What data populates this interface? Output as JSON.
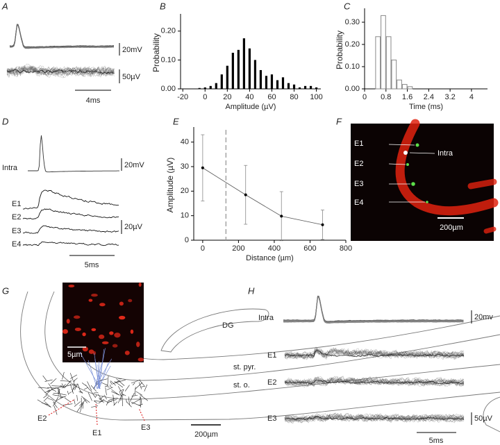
{
  "chart_data": [
    {
      "type": "bar",
      "panel": "B",
      "xlabel": "Amplitude (µV)",
      "ylabel": "Probability",
      "x": [
        -5,
        0,
        5,
        10,
        15,
        20,
        25,
        30,
        35,
        40,
        45,
        50,
        55,
        60,
        65,
        70,
        75,
        80,
        85,
        90,
        95,
        100
      ],
      "values": [
        0.003,
        0.005,
        0.01,
        0.02,
        0.05,
        0.08,
        0.125,
        0.135,
        0.175,
        0.14,
        0.1,
        0.065,
        0.045,
        0.05,
        0.03,
        0.04,
        0.02,
        0.015,
        0.005,
        0.01,
        0.01,
        0.005
      ],
      "color": "#000000",
      "xlim": [
        -22,
        104
      ],
      "xticks": [
        -20,
        0,
        20,
        40,
        60,
        80,
        100
      ],
      "ylim": [
        0,
        0.25
      ],
      "yticks": [
        {
          "value": 0,
          "label": "0.00"
        },
        {
          "value": 0.1,
          "label": "0.10"
        },
        {
          "value": 0.2,
          "label": "0.20"
        }
      ]
    },
    {
      "type": "histogram",
      "panel": "C",
      "xlabel": "Time (ms)",
      "ylabel": "Probability",
      "bins": [
        0.4,
        0.6,
        0.8,
        1.0,
        1.2,
        1.4,
        1.6,
        1.8
      ],
      "values": [
        0.235,
        0.33,
        0.235,
        0.13,
        0.04,
        0.02,
        0.01
      ],
      "color": "#888888",
      "xlim": [
        0,
        4.6
      ],
      "xticks": [
        0,
        0.8,
        1.6,
        2.4,
        3.2,
        4
      ],
      "ylim": [
        0,
        0.35
      ],
      "yticks": [
        {
          "value": 0,
          "label": "0.00"
        },
        {
          "value": 0.1,
          "label": "0.10"
        },
        {
          "value": 0.2,
          "label": "0.20"
        },
        {
          "value": 0.3,
          "label": "0.30"
        }
      ]
    },
    {
      "type": "line",
      "panel": "E",
      "xlabel": "Distance (µm)",
      "ylabel": "Amplitude (µV)",
      "x": [
        0,
        240,
        440,
        670
      ],
      "values": [
        29.5,
        18.5,
        9.8,
        6.3
      ],
      "errors": [
        13.5,
        12,
        10,
        6
      ],
      "color": "#555555",
      "vline": 130,
      "xlim": [
        -50,
        800
      ],
      "xticks": [
        0,
        200,
        400,
        600,
        800
      ],
      "ylim": [
        0,
        45
      ],
      "yticks": [
        0,
        10,
        20,
        30,
        40
      ]
    }
  ],
  "panels": {
    "a": {
      "label": "A",
      "scale_top": "20mV",
      "scale_bottom": "50µV",
      "scale_time": "4ms"
    },
    "d": {
      "label": "D",
      "intra": "Intra",
      "e1": "E1",
      "e2": "E2",
      "e3": "E3",
      "e4": "E4",
      "scale_top": "20mV",
      "scale_bottom": "20µV",
      "scale_time": "5ms"
    },
    "f": {
      "label": "F",
      "e1": "E1",
      "intra": "Intra",
      "e2": "E2",
      "e3": "E3",
      "e4": "E4",
      "scale": "200µm"
    },
    "g": {
      "label": "G",
      "dg": "DG",
      "pyr": "st. pyr.",
      "oriens": "st. o.",
      "e2": "E2",
      "e1": "E1",
      "e3": "E3",
      "inset_scale": "5µm",
      "scale": "200µm"
    },
    "h": {
      "label": "H",
      "intra": "Intra",
      "scale_top": "20mv",
      "e1": "E1",
      "e2": "E2",
      "e3": "E3",
      "scale_bottom": "50µV",
      "scale_time": "5ms"
    }
  }
}
